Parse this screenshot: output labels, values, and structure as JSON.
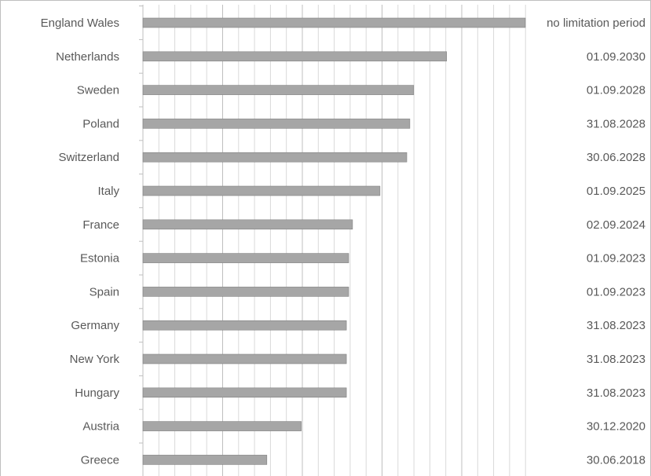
{
  "chart_data": {
    "type": "bar",
    "orientation": "horizontal",
    "title": "",
    "xlabel": "",
    "ylabel": "",
    "categories": [
      "England Wales",
      "Netherlands",
      "Sweden",
      "Poland",
      "Switzerland",
      "Italy",
      "France",
      "Estonia",
      "Spain",
      "Germany",
      "New York",
      "Hungary",
      "Austria",
      "Greece"
    ],
    "date_labels": [
      "no limitation period",
      "01.09.2030",
      "01.09.2028",
      "31.08.2028",
      "30.06.2028",
      "01.09.2025",
      "02.09.2024",
      "01.09.2023",
      "01.09.2023",
      "31.08.2023",
      "31.08.2023",
      "31.08.2023",
      "30.12.2020",
      "30.06.2018"
    ],
    "values": [
      1,
      0.794,
      0.708,
      0.698,
      0.69,
      0.62,
      0.548,
      0.538,
      0.538,
      0.532,
      0.532,
      0.532,
      0.414,
      0.324
    ],
    "xlim": [
      0,
      1
    ],
    "grid": true,
    "legend": "none",
    "colors": {
      "bar": "#a6a6a6",
      "bar_edge": "#808080",
      "grid_minor": "#d9d9d9",
      "grid_major": "#bfbfbf",
      "frame": "#bfbfbf",
      "text": "#595959"
    }
  }
}
